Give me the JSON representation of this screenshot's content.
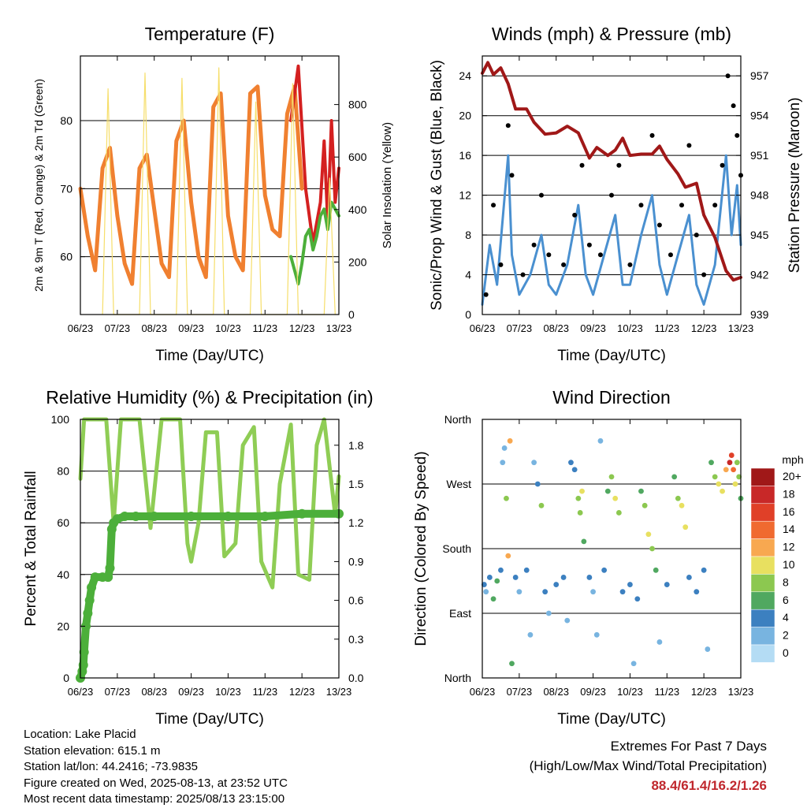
{
  "chart_data": [
    {
      "type": "line",
      "title": "Temperature (F)",
      "xlabel": "Time (Day/UTC)",
      "ylabel": "2m & 9m T (Red, Orange) & 2m Td (Green)",
      "y2label": "Solar Insolation (Yellow)",
      "x_ticks": [
        "06/23",
        "07/23",
        "08/23",
        "09/23",
        "10/23",
        "11/23",
        "12/23",
        "13/23"
      ],
      "xlim": [
        6,
        13
      ],
      "ylim": [
        51.5,
        89.5
      ],
      "y_ticks": [
        60,
        70,
        80
      ],
      "y2lim": [
        0,
        985
      ],
      "y2_ticks": [
        0,
        200,
        400,
        600,
        800
      ],
      "grid": "y",
      "series": [
        {
          "name": "9m T",
          "color": "#f08030",
          "x": [
            6.0,
            6.2,
            6.4,
            6.6,
            6.8,
            7.0,
            7.2,
            7.4,
            7.6,
            7.8,
            8.0,
            8.2,
            8.4,
            8.6,
            8.8,
            9.0,
            9.2,
            9.4,
            9.6,
            9.8,
            10.0,
            10.2,
            10.4,
            10.6,
            10.8,
            11.0,
            11.2,
            11.4,
            11.6,
            11.8,
            12.0
          ],
          "y": [
            70,
            63,
            58,
            73,
            76,
            66,
            59,
            56,
            73,
            75,
            67,
            59,
            57,
            77,
            80,
            68,
            60,
            57,
            82,
            84,
            66,
            60,
            58,
            84,
            85,
            69,
            64,
            63,
            81,
            85,
            70
          ]
        },
        {
          "name": "2m T",
          "color": "#d42020",
          "x": [
            11.7,
            11.9,
            12.1,
            12.3,
            12.5,
            12.6,
            12.7,
            12.8,
            12.9,
            13.0
          ],
          "y": [
            80,
            88,
            70,
            62,
            68,
            77,
            65,
            80,
            68,
            73
          ]
        },
        {
          "name": "2m Td",
          "color": "#4caf3a",
          "x": [
            11.7,
            11.8,
            11.9,
            12.0,
            12.1,
            12.2,
            12.3,
            12.4,
            12.5,
            12.6,
            12.7,
            12.8,
            12.9,
            13.0
          ],
          "y": [
            60,
            58,
            56,
            59,
            63,
            64,
            61,
            63,
            66,
            67,
            64,
            68,
            67,
            66
          ]
        },
        {
          "name": "Solar Insolation",
          "color": "#f6de6a",
          "axis": "y2",
          "x": [
            6.6,
            6.75,
            6.9,
            7.6,
            7.75,
            7.9,
            8.6,
            8.75,
            8.9,
            9.6,
            9.75,
            9.9,
            10.6,
            10.75,
            10.9,
            11.6,
            11.75,
            11.9,
            12.6,
            12.75,
            12.9
          ],
          "y": [
            0,
            860,
            0,
            0,
            920,
            0,
            0,
            900,
            0,
            0,
            940,
            0,
            0,
            810,
            0,
            0,
            880,
            0,
            0,
            520,
            0
          ]
        }
      ]
    },
    {
      "type": "line",
      "title": "Winds (mph) & Pressure (mb)",
      "xlabel": "Time (Day/UTC)",
      "ylabel": "Sonic/Prop Wind & Gust (Blue, Black)",
      "y2label": "Station Pressure (Maroon)",
      "x_ticks": [
        "06/23",
        "07/23",
        "08/23",
        "09/23",
        "10/23",
        "11/23",
        "12/23",
        "13/23"
      ],
      "xlim": [
        6,
        13
      ],
      "ylim": [
        0,
        26
      ],
      "y_ticks": [
        0,
        4,
        8,
        12,
        16,
        20,
        24
      ],
      "y2lim": [
        939,
        958.5
      ],
      "y2_ticks": [
        939,
        942,
        945,
        948,
        951,
        954,
        957
      ],
      "grid": "y",
      "series": [
        {
          "name": "Wind",
          "color": "#4a90d0",
          "x": [
            6.0,
            6.2,
            6.4,
            6.7,
            6.8,
            7.0,
            7.3,
            7.6,
            7.8,
            8.0,
            8.3,
            8.6,
            8.8,
            9.0,
            9.3,
            9.6,
            9.8,
            10.0,
            10.3,
            10.6,
            10.8,
            11.0,
            11.3,
            11.6,
            11.8,
            12.0,
            12.3,
            12.6,
            12.75,
            12.9,
            13.0
          ],
          "y": [
            1,
            7,
            3,
            16,
            6,
            2,
            4,
            8,
            3,
            2,
            5,
            11,
            4,
            2,
            6,
            10,
            3,
            3,
            8,
            12,
            5,
            2,
            6,
            10,
            3,
            1,
            5,
            16,
            8,
            13,
            7
          ]
        },
        {
          "name": "Gust",
          "color": "#000000",
          "x": [
            6.1,
            6.3,
            6.5,
            6.7,
            6.8,
            7.1,
            7.4,
            7.6,
            7.8,
            8.2,
            8.5,
            8.7,
            8.9,
            9.2,
            9.5,
            9.7,
            10.0,
            10.3,
            10.6,
            10.8,
            11.1,
            11.4,
            11.6,
            11.8,
            12.0,
            12.3,
            12.5,
            12.65,
            12.8,
            12.9,
            13.0
          ],
          "y": [
            2,
            11,
            5,
            19,
            14,
            4,
            7,
            12,
            6,
            5,
            10,
            15,
            7,
            6,
            12,
            15,
            5,
            11,
            18,
            9,
            6,
            11,
            17,
            8,
            4,
            11,
            15,
            24,
            21,
            18,
            14
          ]
        },
        {
          "name": "Station Pressure",
          "color": "#a01818",
          "axis": "y2",
          "x": [
            6.0,
            6.15,
            6.3,
            6.5,
            6.7,
            6.9,
            7.2,
            7.4,
            7.7,
            8.0,
            8.3,
            8.6,
            8.9,
            9.1,
            9.4,
            9.6,
            9.8,
            10.0,
            10.3,
            10.6,
            10.8,
            11.0,
            11.3,
            11.5,
            11.8,
            12.0,
            12.3,
            12.6,
            12.8,
            13.0
          ],
          "y": [
            957.2,
            958.0,
            957.1,
            957.6,
            956.4,
            954.5,
            954.5,
            953.5,
            952.6,
            952.7,
            953.2,
            952.7,
            950.8,
            951.6,
            951.0,
            951.4,
            952.3,
            951.0,
            951.1,
            951.1,
            951.7,
            950.7,
            949.6,
            948.6,
            948.9,
            946.5,
            944.8,
            942.3,
            941.6,
            941.8
          ]
        }
      ]
    },
    {
      "type": "line",
      "title": "Relative Humidity (%) & Precipitation (in)",
      "xlabel": "Time (Day/UTC)",
      "ylabel": "Percent & Total Rainfall",
      "x_ticks": [
        "06/23",
        "07/23",
        "08/23",
        "09/23",
        "10/23",
        "11/23",
        "12/23",
        "13/23"
      ],
      "xlim": [
        6,
        13
      ],
      "ylim": [
        0,
        100
      ],
      "y_ticks": [
        0,
        20,
        40,
        60,
        80,
        100
      ],
      "y2lim": [
        0,
        2.0
      ],
      "y2_ticks": [
        "0.0",
        "0.3",
        "0.6",
        "0.9",
        "1.2",
        "1.5",
        "1.8"
      ],
      "grid": "y",
      "series": [
        {
          "name": "Relative Humidity",
          "color": "#8fcd55",
          "x": [
            6.0,
            6.1,
            6.3,
            6.7,
            6.9,
            7.1,
            7.3,
            7.5,
            7.6,
            7.9,
            8.2,
            8.5,
            8.7,
            8.9,
            9.0,
            9.2,
            9.4,
            9.7,
            9.9,
            10.2,
            10.4,
            10.7,
            10.9,
            11.2,
            11.4,
            11.7,
            11.9,
            12.2,
            12.4,
            12.6,
            12.9,
            13.0
          ],
          "y": [
            77,
            100,
            100,
            100,
            60,
            100,
            100,
            100,
            100,
            58,
            100,
            100,
            100,
            52,
            45,
            60,
            95,
            95,
            47,
            52,
            90,
            97,
            45,
            35,
            75,
            98,
            40,
            38,
            90,
            100,
            63,
            78
          ]
        },
        {
          "name": "Total Rainfall",
          "color": "#4caf3a",
          "axis": "y2",
          "x": [
            6.0,
            6.05,
            6.08,
            6.1,
            6.15,
            6.2,
            6.25,
            6.3,
            6.4,
            6.6,
            6.75,
            6.8,
            6.85,
            6.9,
            7.0,
            7.2,
            7.5,
            8.0,
            9.0,
            10.0,
            11.0,
            12.0,
            13.0
          ],
          "y": [
            0,
            0.05,
            0.1,
            0.2,
            0.4,
            0.5,
            0.6,
            0.7,
            0.78,
            0.78,
            0.78,
            0.85,
            1.15,
            1.2,
            1.23,
            1.25,
            1.25,
            1.25,
            1.25,
            1.25,
            1.25,
            1.27,
            1.27
          ]
        }
      ]
    },
    {
      "type": "scatter",
      "title": "Wind Direction",
      "xlabel": "Time (Day/UTC)",
      "ylabel": "Direction (Colored By Speed)",
      "x_ticks": [
        "06/23",
        "07/23",
        "08/23",
        "09/23",
        "10/23",
        "11/23",
        "12/23",
        "13/23"
      ],
      "xlim": [
        6,
        13
      ],
      "ylim": [
        0,
        360
      ],
      "y_ticks": [
        "North",
        "East",
        "South",
        "West",
        "North"
      ],
      "grid": "y",
      "colorbar_title": "mph",
      "colorbar_labels": [
        "20+",
        "18",
        "16",
        "14",
        "12",
        "10",
        "8",
        "6",
        "4",
        "2",
        "0"
      ],
      "colorbar_colors": [
        "#a01818",
        "#c82828",
        "#e04028",
        "#f06a30",
        "#f8a850",
        "#e8e060",
        "#8cc850",
        "#50a860",
        "#3c80c0",
        "#78b4e0",
        "#b4dcf4"
      ],
      "points": [
        {
          "x": 6.05,
          "y": 130,
          "speed": 4
        },
        {
          "x": 6.1,
          "y": 120,
          "speed": 2
        },
        {
          "x": 6.2,
          "y": 140,
          "speed": 3
        },
        {
          "x": 6.3,
          "y": 110,
          "speed": 5
        },
        {
          "x": 6.4,
          "y": 135,
          "speed": 6
        },
        {
          "x": 6.5,
          "y": 150,
          "speed": 4
        },
        {
          "x": 6.55,
          "y": 300,
          "speed": 2
        },
        {
          "x": 6.6,
          "y": 320,
          "speed": 1
        },
        {
          "x": 6.65,
          "y": 250,
          "speed": 7
        },
        {
          "x": 6.7,
          "y": 170,
          "speed": 12
        },
        {
          "x": 6.75,
          "y": 330,
          "speed": 12
        },
        {
          "x": 6.8,
          "y": 20,
          "speed": 6
        },
        {
          "x": 6.9,
          "y": 140,
          "speed": 3
        },
        {
          "x": 7.0,
          "y": 120,
          "speed": 2
        },
        {
          "x": 7.2,
          "y": 150,
          "speed": 4
        },
        {
          "x": 7.3,
          "y": 60,
          "speed": 1
        },
        {
          "x": 7.4,
          "y": 300,
          "speed": 1
        },
        {
          "x": 7.5,
          "y": 270,
          "speed": 3
        },
        {
          "x": 7.6,
          "y": 240,
          "speed": 8
        },
        {
          "x": 7.7,
          "y": 120,
          "speed": 3
        },
        {
          "x": 7.8,
          "y": 90,
          "speed": 2
        },
        {
          "x": 8.0,
          "y": 130,
          "speed": 4
        },
        {
          "x": 8.2,
          "y": 140,
          "speed": 3
        },
        {
          "x": 8.3,
          "y": 80,
          "speed": 1
        },
        {
          "x": 8.4,
          "y": 300,
          "speed": 3
        },
        {
          "x": 8.5,
          "y": 290,
          "speed": 4
        },
        {
          "x": 8.6,
          "y": 250,
          "speed": 8
        },
        {
          "x": 8.65,
          "y": 230,
          "speed": 7
        },
        {
          "x": 8.7,
          "y": 260,
          "speed": 9
        },
        {
          "x": 8.75,
          "y": 190,
          "speed": 6
        },
        {
          "x": 8.9,
          "y": 140,
          "speed": 3
        },
        {
          "x": 9.0,
          "y": 120,
          "speed": 2
        },
        {
          "x": 9.1,
          "y": 60,
          "speed": 1
        },
        {
          "x": 9.2,
          "y": 330,
          "speed": 2
        },
        {
          "x": 9.3,
          "y": 150,
          "speed": 4
        },
        {
          "x": 9.4,
          "y": 260,
          "speed": 6
        },
        {
          "x": 9.5,
          "y": 280,
          "speed": 7
        },
        {
          "x": 9.6,
          "y": 250,
          "speed": 9
        },
        {
          "x": 9.7,
          "y": 230,
          "speed": 7
        },
        {
          "x": 9.8,
          "y": 120,
          "speed": 3
        },
        {
          "x": 10.0,
          "y": 130,
          "speed": 4
        },
        {
          "x": 10.1,
          "y": 20,
          "speed": 1
        },
        {
          "x": 10.2,
          "y": 110,
          "speed": 3
        },
        {
          "x": 10.3,
          "y": 260,
          "speed": 5
        },
        {
          "x": 10.4,
          "y": 240,
          "speed": 7
        },
        {
          "x": 10.5,
          "y": 200,
          "speed": 9
        },
        {
          "x": 10.6,
          "y": 180,
          "speed": 8
        },
        {
          "x": 10.7,
          "y": 150,
          "speed": 5
        },
        {
          "x": 10.8,
          "y": 50,
          "speed": 2
        },
        {
          "x": 11.0,
          "y": 130,
          "speed": 3
        },
        {
          "x": 11.2,
          "y": 280,
          "speed": 6
        },
        {
          "x": 11.3,
          "y": 250,
          "speed": 8
        },
        {
          "x": 11.4,
          "y": 240,
          "speed": 10
        },
        {
          "x": 11.5,
          "y": 210,
          "speed": 9
        },
        {
          "x": 11.6,
          "y": 140,
          "speed": 4
        },
        {
          "x": 11.8,
          "y": 120,
          "speed": 3
        },
        {
          "x": 12.0,
          "y": 150,
          "speed": 4
        },
        {
          "x": 12.1,
          "y": 40,
          "speed": 1
        },
        {
          "x": 12.2,
          "y": 300,
          "speed": 6
        },
        {
          "x": 12.3,
          "y": 280,
          "speed": 8
        },
        {
          "x": 12.4,
          "y": 270,
          "speed": 10
        },
        {
          "x": 12.5,
          "y": 260,
          "speed": 9
        },
        {
          "x": 12.6,
          "y": 290,
          "speed": 12
        },
        {
          "x": 12.7,
          "y": 300,
          "speed": 18
        },
        {
          "x": 12.75,
          "y": 310,
          "speed": 16
        },
        {
          "x": 12.8,
          "y": 290,
          "speed": 14
        },
        {
          "x": 12.85,
          "y": 270,
          "speed": 10
        },
        {
          "x": 12.9,
          "y": 300,
          "speed": 8
        },
        {
          "x": 12.95,
          "y": 280,
          "speed": 7
        },
        {
          "x": 13.0,
          "y": 250,
          "speed": 5
        }
      ]
    }
  ],
  "footer": {
    "location": "Location: Lake Placid",
    "elevation": "Station elevation: 615.1 m",
    "latlon": "Station lat/lon: 44.2416; -73.9835",
    "created": "Figure created on Wed, 2025-08-13, at 23:52 UTC",
    "recent": "Most recent data timestamp: 2025/08/13 23:15:00",
    "extremes_title": "Extremes For Past 7 Days",
    "extremes_subtitle": "(High/Low/Max Wind/Total Precipitation)",
    "extremes_values": "88.4/61.4/16.2/1.26",
    "extremes_color": "#c0272d"
  }
}
